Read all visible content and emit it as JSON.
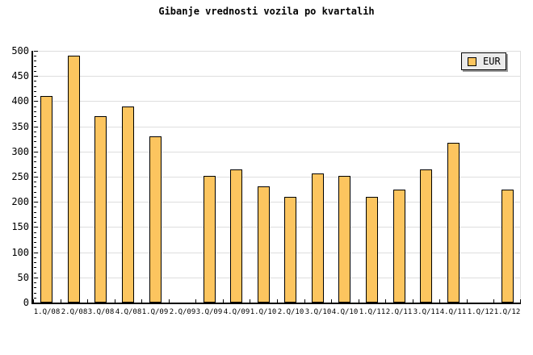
{
  "page": {
    "background": "#ffffff"
  },
  "chart_data": {
    "type": "bar",
    "title": "Gibanje vrednosti vozila po kvartalih",
    "categories": [
      "1.Q/08",
      "2.Q/08",
      "3.Q/08",
      "4.Q/08",
      "1.Q/09",
      "2.Q/09",
      "3.Q/09",
      "4.Q/09",
      "1.Q/10",
      "2.Q/10",
      "3.Q/10",
      "4.Q/10",
      "1.Q/11",
      "2.Q/11",
      "3.Q/11",
      "4.Q/11",
      "1.Q/12",
      "1.Q/12"
    ],
    "series": [
      {
        "name": "EUR",
        "values": [
          410,
          490,
          370,
          390,
          330,
          null,
          252,
          265,
          230,
          210,
          256,
          252,
          210,
          225,
          265,
          317,
          null,
          225
        ]
      }
    ],
    "xlabel": "",
    "ylabel": "",
    "ylim": [
      0,
      500
    ],
    "y_major_tick": 50,
    "y_minor_tick": 10,
    "y_tick_labels": [
      "0",
      "50",
      "100",
      "150",
      "200",
      "250",
      "300",
      "350",
      "400",
      "450",
      "500"
    ],
    "grid": "horizontal gridlines at major ticks",
    "legend_position": "top-right",
    "colors": {
      "bar_fill": "#fcc55f",
      "bar_border": "#000000",
      "gridline": "#dedede",
      "axis": "#000000",
      "legend_bg": "#ebebeb",
      "legend_border": "#000000",
      "legend_shadow": "#999999",
      "text": "#000000"
    }
  }
}
